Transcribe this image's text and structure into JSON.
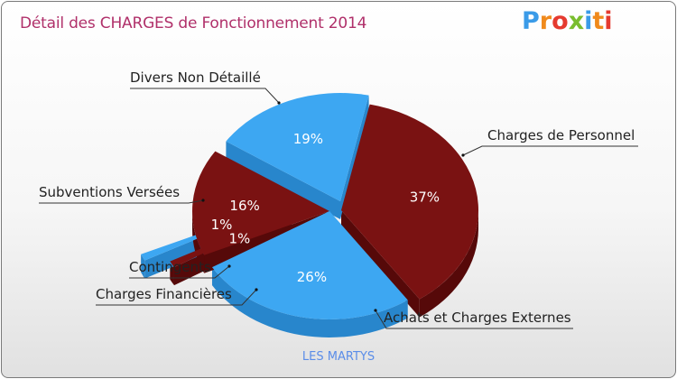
{
  "title": "Détail des CHARGES de Fonctionnement 2014",
  "logo": {
    "text": "Proxiti",
    "colors": [
      "#3a9be8",
      "#f08a1c",
      "#e53a2f",
      "#79bd2e",
      "#3a9be8",
      "#f08a1c",
      "#e53a2f"
    ]
  },
  "subtitle": "LES MARTYS",
  "colors": {
    "blue": "#3da7f2",
    "blue_side": "#2886cc",
    "red": "#7a1212",
    "red_side": "#560909",
    "title": "#b0306a"
  },
  "chart_data": {
    "type": "pie",
    "title": "Détail des CHARGES de Fonctionnement 2014",
    "subtitle": "LES MARTYS",
    "slices": [
      {
        "label": "Charges de Personnel",
        "value": 37,
        "pct_label": "37%",
        "color": "red"
      },
      {
        "label": "Achats et Charges Externes",
        "value": 26,
        "pct_label": "26%",
        "color": "blue"
      },
      {
        "label": "Charges Financières",
        "value": 1,
        "pct_label": "1%",
        "color": "red"
      },
      {
        "label": "Contingents",
        "value": 1,
        "pct_label": "1%",
        "color": "blue"
      },
      {
        "label": "Subventions Versées",
        "value": 16,
        "pct_label": "16%",
        "color": "red"
      },
      {
        "label": "Divers Non Détaillé",
        "value": 19,
        "pct_label": "19%",
        "color": "blue"
      }
    ]
  }
}
